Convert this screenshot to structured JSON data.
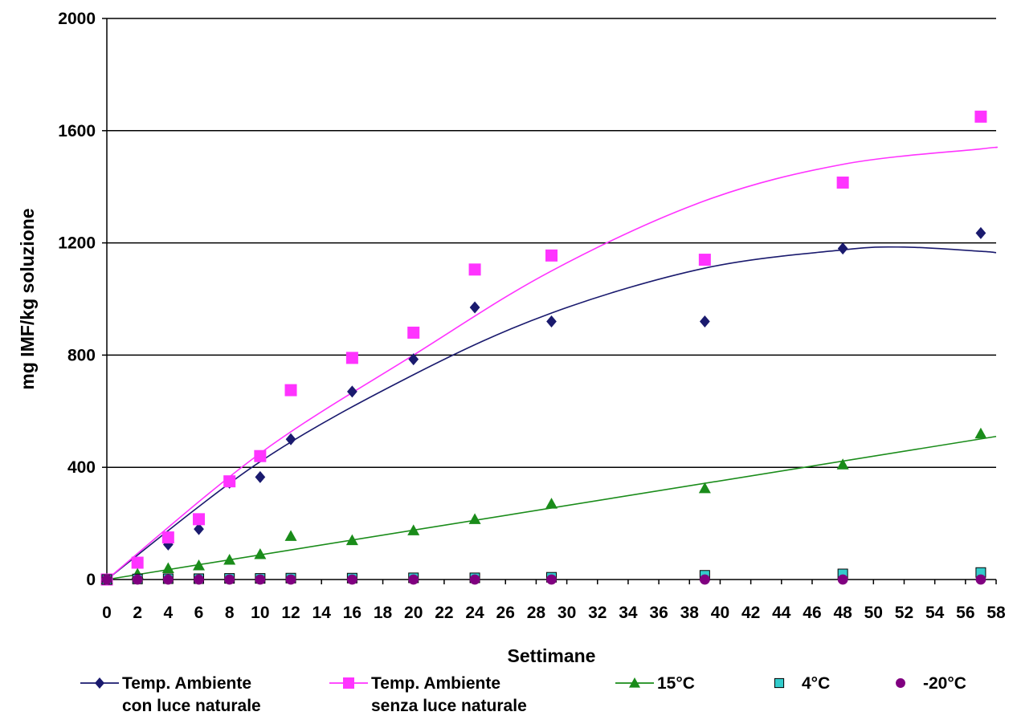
{
  "chart_data": {
    "type": "scatter",
    "title": "",
    "xlabel": "Settimane",
    "ylabel": "mg IMF/kg soluzione",
    "xlim": [
      0,
      58
    ],
    "ylim": [
      0,
      2000
    ],
    "x_ticks": [
      0,
      2,
      4,
      6,
      8,
      10,
      12,
      14,
      16,
      18,
      20,
      22,
      24,
      26,
      28,
      30,
      32,
      34,
      36,
      38,
      40,
      42,
      44,
      46,
      48,
      50,
      52,
      54,
      56,
      58
    ],
    "y_ticks": [
      0,
      400,
      800,
      1200,
      1600,
      2000
    ],
    "gridlines": "horizontal",
    "legend_position": "bottom",
    "series": [
      {
        "name_line1": "Temp. Ambiente",
        "name_line2": "con luce naturale",
        "marker": "diamond",
        "color": "#1a1a6e",
        "trendline": "polynomial",
        "points": [
          [
            0,
            0
          ],
          [
            2,
            60
          ],
          [
            4,
            125
          ],
          [
            6,
            180
          ],
          [
            8,
            345
          ],
          [
            10,
            365
          ],
          [
            12,
            500
          ],
          [
            16,
            670
          ],
          [
            20,
            785
          ],
          [
            24,
            970
          ],
          [
            29,
            920
          ],
          [
            39,
            920
          ],
          [
            48,
            1180
          ],
          [
            57,
            1235
          ]
        ],
        "trend": [
          [
            0,
            0
          ],
          [
            10,
            420
          ],
          [
            20,
            730
          ],
          [
            29,
            950
          ],
          [
            39,
            1110
          ],
          [
            48,
            1175
          ],
          [
            52,
            1185
          ],
          [
            57,
            1170
          ],
          [
            58,
            1165
          ]
        ]
      },
      {
        "name_line1": "Temp. Ambiente",
        "name_line2": "senza luce naturale",
        "marker": "square",
        "color": "#ff33ff",
        "trendline": "polynomial",
        "points": [
          [
            0,
            0
          ],
          [
            2,
            60
          ],
          [
            4,
            150
          ],
          [
            6,
            215
          ],
          [
            8,
            350
          ],
          [
            10,
            440
          ],
          [
            12,
            675
          ],
          [
            16,
            790
          ],
          [
            20,
            880
          ],
          [
            24,
            1105
          ],
          [
            29,
            1155
          ],
          [
            39,
            1140
          ],
          [
            48,
            1415
          ],
          [
            57,
            1650
          ]
        ],
        "trend": [
          [
            0,
            0
          ],
          [
            10,
            450
          ],
          [
            20,
            800
          ],
          [
            29,
            1100
          ],
          [
            39,
            1350
          ],
          [
            48,
            1480
          ],
          [
            57,
            1535
          ],
          [
            58,
            1540
          ]
        ]
      },
      {
        "name_line1": "15°C",
        "name_line2": "",
        "marker": "triangle",
        "color": "#1a8c1a",
        "trendline": "linear",
        "points": [
          [
            0,
            0
          ],
          [
            2,
            20
          ],
          [
            4,
            40
          ],
          [
            6,
            50
          ],
          [
            8,
            70
          ],
          [
            10,
            90
          ],
          [
            12,
            155
          ],
          [
            16,
            140
          ],
          [
            20,
            175
          ],
          [
            24,
            215
          ],
          [
            29,
            270
          ],
          [
            39,
            325
          ],
          [
            48,
            410
          ],
          [
            57,
            520
          ]
        ],
        "trend": [
          [
            0,
            0
          ],
          [
            58,
            510
          ]
        ]
      },
      {
        "name_line1": "4°C",
        "name_line2": "",
        "marker": "square-outline",
        "color": "#33cccc",
        "trendline": "none",
        "points": [
          [
            0,
            0
          ],
          [
            2,
            2
          ],
          [
            4,
            3
          ],
          [
            6,
            3
          ],
          [
            8,
            4
          ],
          [
            10,
            4
          ],
          [
            12,
            5
          ],
          [
            16,
            5
          ],
          [
            20,
            6
          ],
          [
            24,
            6
          ],
          [
            29,
            8
          ],
          [
            39,
            15
          ],
          [
            48,
            20
          ],
          [
            57,
            25
          ]
        ],
        "trend": []
      },
      {
        "name_line1": "-20°C",
        "name_line2": "",
        "marker": "circle",
        "color": "#800080",
        "trendline": "none",
        "points": [
          [
            0,
            0
          ],
          [
            2,
            0
          ],
          [
            4,
            0
          ],
          [
            6,
            0
          ],
          [
            8,
            0
          ],
          [
            10,
            0
          ],
          [
            12,
            0
          ],
          [
            16,
            0
          ],
          [
            20,
            0
          ],
          [
            24,
            0
          ],
          [
            29,
            0
          ],
          [
            39,
            0
          ],
          [
            48,
            0
          ],
          [
            57,
            0
          ]
        ],
        "trend": []
      }
    ]
  }
}
